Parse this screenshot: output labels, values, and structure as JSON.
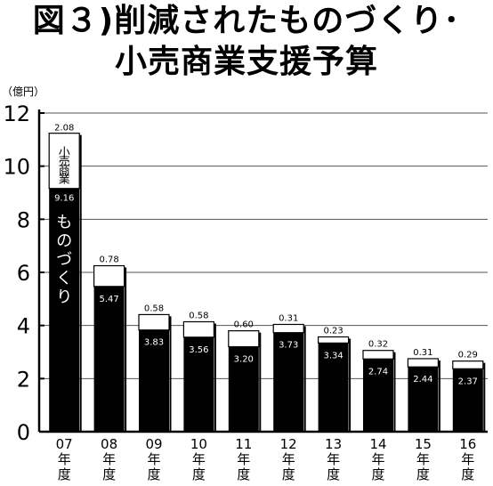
{
  "title_line1": "図３)削減されたものづくり･",
  "title_line2": "小売商業支援予算",
  "unit_label": "（億円）",
  "inner_label_top": "小売商業",
  "inner_label_bottom": "ものづくり",
  "chart_data": {
    "type": "bar",
    "stacked": true,
    "title": "図３)削減されたものづくり･小売商業支援予算",
    "ylabel": "（億円）",
    "ylim": [
      0,
      12
    ],
    "yticks": [
      0,
      2,
      4,
      6,
      8,
      10,
      12
    ],
    "grid": true,
    "categories": [
      "07年度",
      "08年度",
      "09年度",
      "10年度",
      "11年度",
      "12年度",
      "13年度",
      "14年度",
      "15年度",
      "16年度"
    ],
    "series": [
      {
        "name": "ものづくり",
        "color": "#000000",
        "values": [
          9.16,
          5.47,
          3.83,
          3.56,
          3.2,
          3.73,
          3.34,
          2.74,
          2.44,
          2.37
        ],
        "labels": [
          "9.16",
          "5.47",
          "3.83",
          "3.56",
          "3.20",
          "3.73",
          "3.34",
          "2.74",
          "2.44",
          "2.37"
        ]
      },
      {
        "name": "小売商業",
        "color": "#ffffff",
        "values": [
          2.08,
          0.78,
          0.58,
          0.58,
          0.6,
          0.31,
          0.23,
          0.32,
          0.31,
          0.29
        ],
        "labels": [
          "2.08",
          "0.78",
          "0.58",
          "0.58",
          "0.60",
          "0.31",
          "0.23",
          "0.32",
          "0.31",
          "0.29"
        ]
      }
    ],
    "x_tick_labels": [
      [
        "07",
        "年",
        "度"
      ],
      [
        "08",
        "年",
        "度"
      ],
      [
        "09",
        "年",
        "度"
      ],
      [
        "10",
        "年",
        "度"
      ],
      [
        "11",
        "年",
        "度"
      ],
      [
        "12",
        "年",
        "度"
      ],
      [
        "13",
        "年",
        "度"
      ],
      [
        "14",
        "年",
        "度"
      ],
      [
        "15",
        "年",
        "度"
      ],
      [
        "16",
        "年",
        "度"
      ]
    ]
  }
}
